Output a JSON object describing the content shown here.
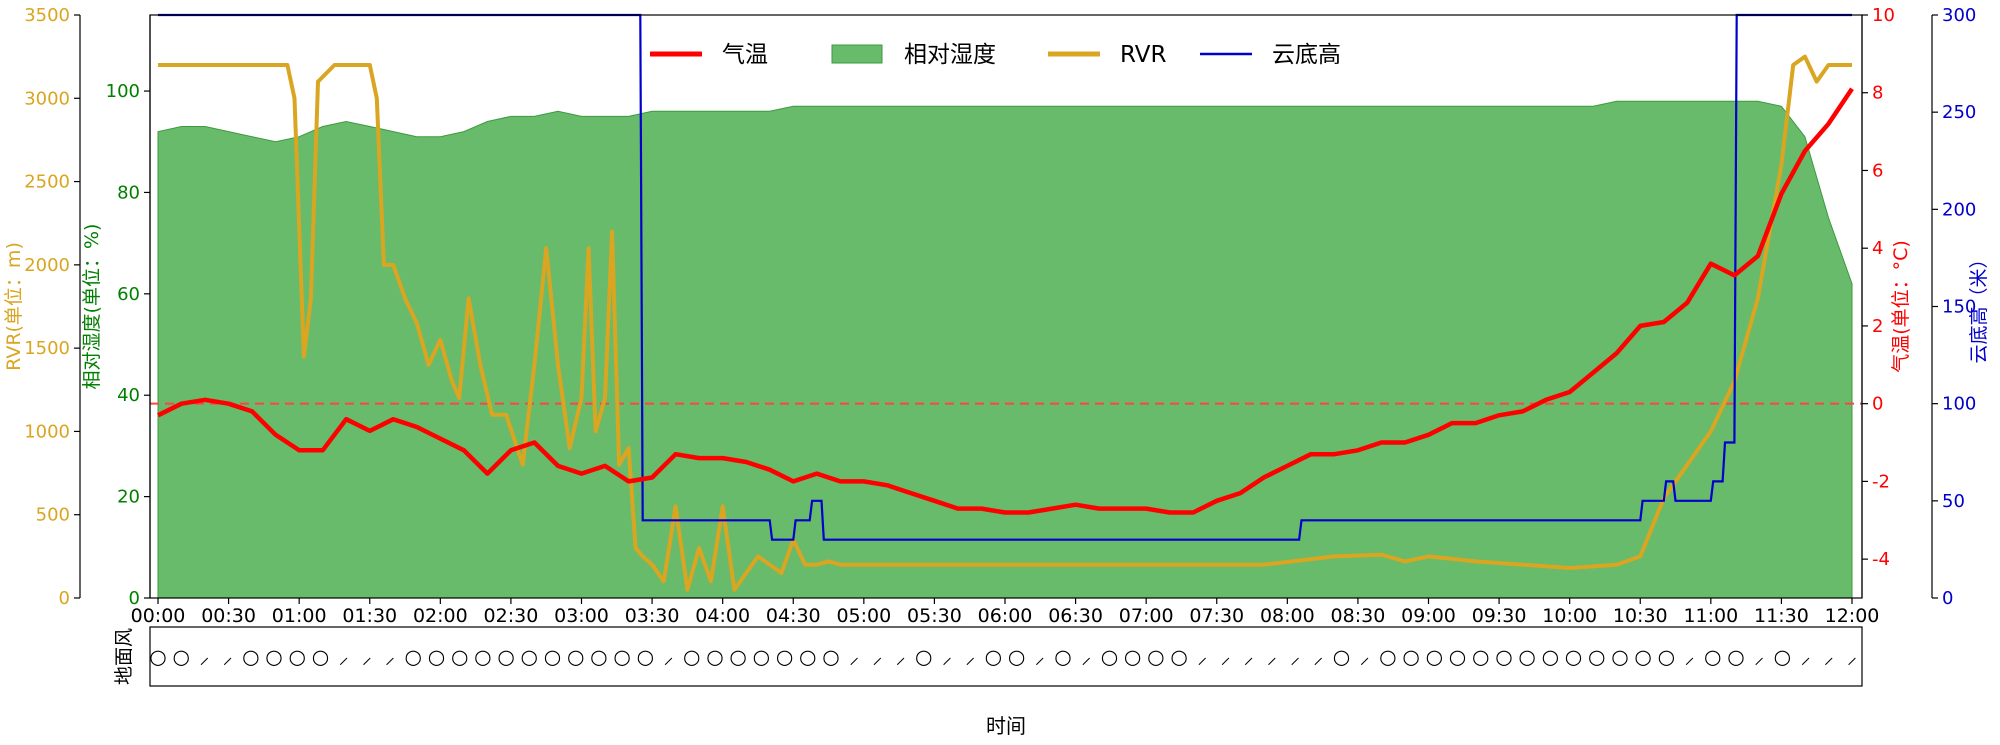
{
  "chart_data": {
    "type": "line",
    "xlabel": "时间",
    "wind_label": "地面风",
    "x_ticks": [
      "00:00",
      "00:30",
      "01:00",
      "01:30",
      "02:00",
      "02:30",
      "03:00",
      "03:30",
      "04:00",
      "04:30",
      "05:00",
      "05:30",
      "06:00",
      "06:30",
      "07:00",
      "07:30",
      "08:00",
      "08:30",
      "09:00",
      "09:30",
      "10:00",
      "10:30",
      "11:00",
      "11:30",
      "12:00"
    ],
    "axes": {
      "rvr": {
        "label": "RVR(单位：m)",
        "ylim": [
          0,
          3500
        ],
        "ticks": [
          0,
          500,
          1000,
          1500,
          2000,
          2500,
          3000,
          3500
        ],
        "color": "#DAA520"
      },
      "humidity": {
        "label": "相对湿度(单位：%)",
        "ylim": [
          0,
          115
        ],
        "ticks": [
          0,
          20,
          40,
          60,
          80,
          100
        ],
        "color": "#008000"
      },
      "temperature": {
        "label": "气温(单位：°C)",
        "ylim": [
          -5,
          10
        ],
        "ticks": [
          -4,
          -2,
          0,
          2,
          4,
          6,
          8,
          10
        ],
        "color": "#FF0000"
      },
      "cloud_base": {
        "label": "云底高（米）",
        "ylim": [
          0,
          300
        ],
        "ticks": [
          0,
          50,
          100,
          150,
          200,
          250,
          300
        ],
        "color": "#0000CC"
      }
    },
    "legend": {
      "placement": "top-center",
      "items": [
        "气温",
        "相对湿度",
        "RVR",
        "云底高"
      ]
    },
    "reference_line": {
      "axis": "temperature",
      "value": 0,
      "style": "dashed",
      "color": "#FF4444"
    },
    "series": [
      {
        "name": "气温",
        "axis": "temperature",
        "color": "#FF0000",
        "x": [
          0,
          10,
          20,
          30,
          40,
          50,
          60,
          70,
          80,
          90,
          100,
          110,
          120,
          130,
          140,
          150,
          160,
          170,
          180,
          190,
          200,
          210,
          220,
          230,
          240,
          250,
          260,
          270,
          280,
          290,
          300,
          310,
          320,
          330,
          340,
          350,
          360,
          370,
          380,
          390,
          400,
          410,
          420,
          430,
          440,
          450,
          460,
          470,
          480,
          490,
          500,
          510,
          520,
          530,
          540,
          550,
          560,
          570,
          580,
          590,
          600,
          610,
          620,
          630,
          640,
          650,
          660,
          670,
          680,
          690,
          700,
          710,
          720
        ],
        "y": [
          -0.3,
          0,
          0.1,
          0,
          -0.2,
          -0.8,
          -1.2,
          -1.2,
          -0.4,
          -0.7,
          -0.4,
          -0.6,
          -0.9,
          -1.2,
          -1.8,
          -1.2,
          -1.0,
          -1.6,
          -1.8,
          -1.6,
          -2.0,
          -1.9,
          -1.3,
          -1.4,
          -1.4,
          -1.5,
          -1.7,
          -2.0,
          -1.8,
          -2.0,
          -2.0,
          -2.1,
          -2.3,
          -2.5,
          -2.7,
          -2.7,
          -2.8,
          -2.8,
          -2.7,
          -2.6,
          -2.7,
          -2.7,
          -2.7,
          -2.8,
          -2.8,
          -2.5,
          -2.3,
          -1.9,
          -1.6,
          -1.3,
          -1.3,
          -1.2,
          -1.0,
          -1.0,
          -0.8,
          -0.5,
          -0.5,
          -0.3,
          -0.2,
          0.1,
          0.3,
          0.8,
          1.3,
          2.0,
          2.1,
          2.6,
          3.6,
          3.3,
          3.8,
          5.4,
          6.5,
          7.2,
          8.1
        ]
      },
      {
        "name": "相对湿度",
        "axis": "humidity",
        "color": "#4CAF50",
        "x": [
          0,
          10,
          20,
          30,
          40,
          50,
          60,
          70,
          80,
          90,
          100,
          110,
          120,
          130,
          140,
          150,
          160,
          170,
          180,
          190,
          200,
          210,
          220,
          230,
          240,
          250,
          260,
          270,
          280,
          290,
          300,
          310,
          320,
          330,
          340,
          350,
          360,
          370,
          380,
          390,
          400,
          410,
          420,
          430,
          440,
          450,
          460,
          470,
          480,
          490,
          500,
          510,
          520,
          530,
          540,
          550,
          560,
          570,
          580,
          590,
          600,
          610,
          620,
          630,
          640,
          650,
          660,
          670,
          680,
          690,
          700,
          710,
          720
        ],
        "y": [
          92,
          93,
          93,
          92,
          91,
          90,
          91,
          93,
          94,
          93,
          92,
          91,
          91,
          92,
          94,
          95,
          95,
          96,
          95,
          95,
          95,
          96,
          96,
          96,
          96,
          96,
          96,
          97,
          97,
          97,
          97,
          97,
          97,
          97,
          97,
          97,
          97,
          97,
          97,
          97,
          97,
          97,
          97,
          97,
          97,
          97,
          97,
          97,
          97,
          97,
          97,
          97,
          97,
          97,
          97,
          97,
          97,
          97,
          97,
          97,
          97,
          97,
          98,
          98,
          98,
          98,
          98,
          98,
          98,
          97,
          91,
          75,
          62
        ]
      },
      {
        "name": "RVR",
        "axis": "rvr",
        "color": "#DAA520",
        "x": [
          0,
          30,
          55,
          58,
          62,
          65,
          68,
          75,
          90,
          93,
          96,
          100,
          105,
          110,
          115,
          120,
          125,
          128,
          132,
          137,
          142,
          148,
          155,
          160,
          165,
          170,
          175,
          180,
          183,
          186,
          190,
          193,
          196,
          200,
          203,
          206,
          210,
          215,
          220,
          225,
          230,
          235,
          240,
          245,
          250,
          255,
          260,
          265,
          270,
          275,
          280,
          285,
          290,
          300,
          330,
          360,
          400,
          440,
          470,
          500,
          520,
          530,
          540,
          560,
          580,
          600,
          620,
          630,
          640,
          650,
          660,
          670,
          680,
          690,
          695,
          700,
          705,
          710,
          715,
          720
        ],
        "y": [
          3200,
          3200,
          3200,
          3000,
          1450,
          1800,
          3100,
          3200,
          3200,
          3000,
          2000,
          2000,
          1800,
          1650,
          1400,
          1550,
          1300,
          1200,
          1800,
          1400,
          1100,
          1100,
          800,
          1400,
          2100,
          1400,
          900,
          1200,
          2100,
          1000,
          1200,
          2200,
          800,
          900,
          300,
          250,
          200,
          100,
          550,
          50,
          300,
          100,
          550,
          50,
          150,
          250,
          200,
          150,
          350,
          200,
          200,
          220,
          200,
          200,
          200,
          200,
          200,
          200,
          200,
          250,
          260,
          220,
          250,
          220,
          200,
          180,
          200,
          250,
          600,
          800,
          1000,
          1300,
          1800,
          2600,
          3200,
          3250,
          3100,
          3200,
          3200,
          3200
        ]
      },
      {
        "name": "云底高",
        "axis": "cloud_base",
        "color": "#0000CC",
        "x": [
          0,
          205,
          206,
          260,
          261,
          270,
          271,
          277,
          278,
          282,
          283,
          485,
          486,
          630,
          631,
          640,
          641,
          644,
          645,
          660,
          661,
          665,
          666,
          670,
          671,
          720
        ],
        "y": [
          300,
          300,
          40,
          40,
          30,
          30,
          40,
          40,
          50,
          50,
          30,
          30,
          40,
          40,
          50,
          50,
          60,
          60,
          50,
          50,
          60,
          60,
          80,
          80,
          300,
          300
        ]
      }
    ],
    "wind_symbols": [
      "○",
      "○",
      "⸝",
      "⸝",
      "○",
      "○",
      "○",
      "○",
      "⸝",
      "⸝",
      "⸝",
      "○",
      "○",
      "○",
      "○",
      "○",
      "○",
      "○",
      "○",
      "○",
      "○",
      "○",
      "⸝",
      "○",
      "○",
      "○",
      "○",
      "○",
      "○",
      "○",
      "⸝",
      "⸝",
      "⸝",
      "○",
      "⸝",
      "⸝",
      "○",
      "○",
      "⸝",
      "○",
      "⸝",
      "○",
      "○",
      "○",
      "○",
      "⸝",
      "⸝",
      "⸝",
      "⸝",
      "⸝",
      "⸝",
      "○",
      "⸝",
      "○",
      "○",
      "○",
      "○",
      "○",
      "○",
      "○",
      "○",
      "○",
      "○",
      "○",
      "○",
      "○",
      "⸝",
      "○",
      "○",
      "⸝",
      "○",
      "⸝",
      "⸝",
      "⸝"
    ]
  }
}
